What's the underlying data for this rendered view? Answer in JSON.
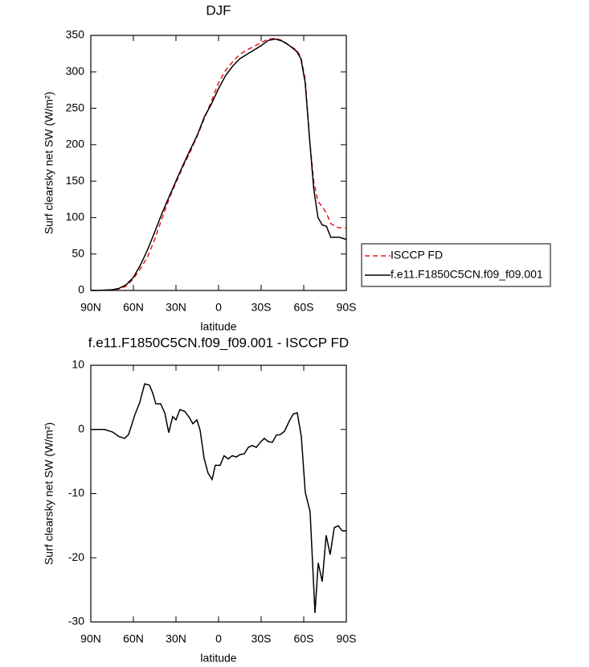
{
  "chart_data": [
    {
      "type": "line",
      "title": "DJF",
      "xlabel": "latitude",
      "ylabel": "Surf clearsky net SW (W/m²)",
      "xlim": [
        90,
        -90
      ],
      "xticks": [
        {
          "value": 90,
          "label": "90N"
        },
        {
          "value": 60,
          "label": "60N"
        },
        {
          "value": 30,
          "label": "30N"
        },
        0,
        {
          "value": -30,
          "label": "30S"
        },
        {
          "value": -60,
          "label": "60S"
        },
        {
          "value": -90,
          "label": "90S"
        }
      ],
      "ylim": [
        0,
        350
      ],
      "yticks": [
        0,
        50,
        100,
        150,
        200,
        250,
        300,
        350
      ],
      "legend": "right",
      "x": [
        90,
        85,
        80,
        75,
        70,
        65,
        60,
        55,
        50,
        45,
        40,
        35,
        30,
        25,
        20,
        15,
        10,
        5,
        0,
        -5,
        -10,
        -15,
        -20,
        -25,
        -30,
        -35,
        -40,
        -45,
        -50,
        -55,
        -58,
        -61,
        -64,
        -67,
        -70,
        -73,
        -76,
        -79,
        -82,
        -85,
        -90
      ],
      "series": [
        {
          "name": "ISCCP FD",
          "color": "#e8141b",
          "dash": true,
          "values": [
            0,
            0,
            0.5,
            1,
            2,
            6,
            16,
            30,
            46,
            70,
            98,
            125,
            148,
            170,
            190,
            212,
            236,
            260,
            285,
            302,
            314,
            324,
            330,
            335,
            340,
            345,
            346,
            343,
            336,
            330,
            320,
            290,
            210,
            150,
            122,
            115,
            106,
            92,
            88,
            86,
            86
          ]
        },
        {
          "name": "f.e11.F1850C5CN.f09_f09.001",
          "color": "#000000",
          "dash": false,
          "values": [
            0,
            0,
            0.5,
            1,
            3,
            8,
            18,
            35,
            56,
            80,
            105,
            128,
            150,
            172,
            193,
            213,
            238,
            256,
            277,
            295,
            308,
            318,
            324,
            330,
            336,
            343,
            345,
            342,
            336,
            328,
            318,
            285,
            210,
            140,
            100,
            90,
            88,
            73,
            73,
            73,
            70
          ]
        }
      ]
    },
    {
      "type": "line",
      "title": "f.e11.F1850C5CN.f09_f09.001 - ISCCP FD",
      "xlabel": "latitude",
      "ylabel": "Surf clearsky net SW (W/m²)",
      "xlim": [
        90,
        -90
      ],
      "xticks": [
        {
          "value": 90,
          "label": "90N"
        },
        {
          "value": 60,
          "label": "60N"
        },
        {
          "value": 30,
          "label": "30N"
        },
        0,
        {
          "value": -30,
          "label": "30S"
        },
        {
          "value": -60,
          "label": "60S"
        },
        {
          "value": -90,
          "label": "90S"
        }
      ],
      "ylim": [
        -30,
        10
      ],
      "yticks": [
        -30,
        -20,
        -10,
        0,
        10
      ],
      "x": [
        90,
        80.4,
        74.7,
        70.2,
        66.2,
        63.4,
        58.9,
        55.5,
        52.1,
        48.7,
        46.4,
        44.2,
        40.8,
        37.9,
        35.1,
        32.3,
        30,
        27.2,
        23.8,
        20.4,
        18.1,
        15.3,
        13,
        10.2,
        7.4,
        4.5,
        2.3,
        -1.1,
        -3.9,
        -6.8,
        -9.6,
        -12.4,
        -15.3,
        -18.1,
        -20.9,
        -23.8,
        -26.6,
        -29.4,
        -32.2,
        -35.1,
        -37.9,
        -40.7,
        -43.6,
        -46.4,
        -49.8,
        -52.6,
        -55.4,
        -58.3,
        -61.1,
        -64.5,
        -67.9,
        -70.2,
        -73,
        -75.8,
        -78.6,
        -81.5,
        -84.3,
        -87.1,
        -90
      ],
      "color": "#000000",
      "values": [
        0,
        0,
        -0.4,
        -1.1,
        -1.4,
        -0.8,
        2.3,
        4.2,
        7.1,
        6.9,
        5.7,
        4,
        4,
        2.6,
        -0.5,
        2,
        1.5,
        3.1,
        2.8,
        1.8,
        0.9,
        1.5,
        -0.1,
        -4.5,
        -6.8,
        -7.8,
        -5.6,
        -5.6,
        -4.1,
        -4.6,
        -4.1,
        -4.3,
        -3.9,
        -3.8,
        -2.8,
        -2.5,
        -2.8,
        -2,
        -1.4,
        -1.9,
        -2,
        -0.9,
        -0.8,
        -0.3,
        1.3,
        2.4,
        2.6,
        -1.1,
        -9.8,
        -12.8,
        -28.6,
        -20.8,
        -23.7,
        -16.5,
        -19.5,
        -15.3,
        -15,
        -15.8,
        -15.8
      ]
    }
  ]
}
